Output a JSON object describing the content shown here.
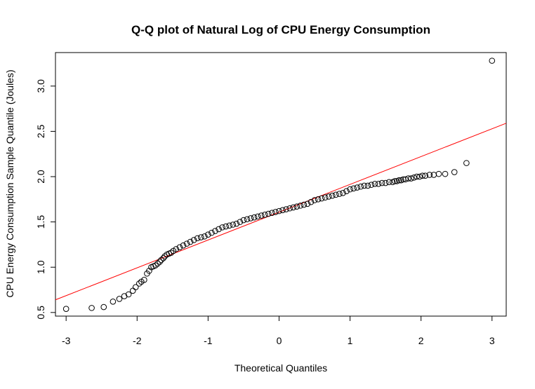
{
  "chart_data": {
    "type": "scatter",
    "title": "Q-Q plot of Natural Log of CPU Energy Consumption",
    "xlabel": "Theoretical Quantiles",
    "ylabel": "CPU Energy Consumption Sample Quantile (Joules)",
    "xlim": [
      -3.15,
      3.2
    ],
    "ylim": [
      0.46,
      3.37
    ],
    "x_ticks": [
      -3,
      -2,
      -1,
      0,
      1,
      2,
      3
    ],
    "x_tick_labels": [
      "-3",
      "-2",
      "-1",
      "0",
      "1",
      "2",
      "3"
    ],
    "y_ticks": [
      0.5,
      1.0,
      1.5,
      2.0,
      2.5,
      3.0
    ],
    "y_tick_labels": [
      "0.5",
      "1.0",
      "1.5",
      "2.0",
      "2.5",
      "3.0"
    ],
    "grid": false,
    "series": [
      {
        "kind": "points",
        "marker": "open-circle",
        "color": "#000000",
        "x": [
          -3.0,
          -2.64,
          -2.47,
          -2.34,
          -2.25,
          -2.18,
          -2.12,
          -2.06,
          -2.02,
          -1.97,
          -1.94,
          -1.9,
          -1.86,
          -1.83,
          -1.8,
          -1.77,
          -1.74,
          -1.71,
          -1.68,
          -1.66,
          -1.63,
          -1.61,
          -1.58,
          -1.55,
          -1.52,
          -1.49,
          -1.45,
          -1.4,
          -1.35,
          -1.3,
          -1.25,
          -1.2,
          -1.15,
          -1.1,
          -1.05,
          -1.0,
          -0.95,
          -0.9,
          -0.85,
          -0.8,
          -0.75,
          -0.7,
          -0.65,
          -0.6,
          -0.55,
          -0.5,
          -0.45,
          -0.4,
          -0.35,
          -0.3,
          -0.25,
          -0.2,
          -0.15,
          -0.1,
          -0.05,
          0.0,
          0.05,
          0.1,
          0.15,
          0.2,
          0.25,
          0.3,
          0.35,
          0.4,
          0.45,
          0.5,
          0.55,
          0.6,
          0.65,
          0.7,
          0.75,
          0.8,
          0.85,
          0.9,
          0.95,
          1.0,
          1.05,
          1.1,
          1.15,
          1.2,
          1.25,
          1.3,
          1.35,
          1.4,
          1.45,
          1.5,
          1.55,
          1.6,
          1.63,
          1.66,
          1.69,
          1.72,
          1.75,
          1.78,
          1.82,
          1.86,
          1.9,
          1.94,
          1.98,
          2.02,
          2.06,
          2.12,
          2.18,
          2.25,
          2.34,
          2.47,
          2.64,
          3.0
        ],
        "y": [
          0.54,
          0.55,
          0.56,
          0.62,
          0.65,
          0.68,
          0.7,
          0.74,
          0.78,
          0.82,
          0.84,
          0.86,
          0.93,
          0.96,
          1.0,
          1.01,
          1.02,
          1.04,
          1.06,
          1.08,
          1.1,
          1.12,
          1.14,
          1.15,
          1.16,
          1.18,
          1.2,
          1.22,
          1.24,
          1.26,
          1.28,
          1.3,
          1.32,
          1.33,
          1.34,
          1.36,
          1.38,
          1.4,
          1.42,
          1.44,
          1.45,
          1.46,
          1.47,
          1.48,
          1.5,
          1.52,
          1.53,
          1.54,
          1.55,
          1.56,
          1.57,
          1.58,
          1.59,
          1.6,
          1.61,
          1.62,
          1.63,
          1.64,
          1.65,
          1.66,
          1.67,
          1.68,
          1.69,
          1.7,
          1.72,
          1.74,
          1.75,
          1.76,
          1.77,
          1.78,
          1.79,
          1.8,
          1.81,
          1.82,
          1.84,
          1.86,
          1.87,
          1.88,
          1.89,
          1.9,
          1.9,
          1.91,
          1.92,
          1.92,
          1.93,
          1.93,
          1.94,
          1.94,
          1.95,
          1.95,
          1.96,
          1.96,
          1.97,
          1.97,
          1.98,
          1.98,
          1.99,
          2.0,
          2.0,
          2.01,
          2.01,
          2.02,
          2.02,
          2.03,
          2.03,
          2.05,
          2.15,
          3.28
        ]
      },
      {
        "kind": "reference-line",
        "color": "#ff0000",
        "x": [
          -3.15,
          3.2
        ],
        "y": [
          0.64,
          2.59
        ]
      }
    ]
  }
}
